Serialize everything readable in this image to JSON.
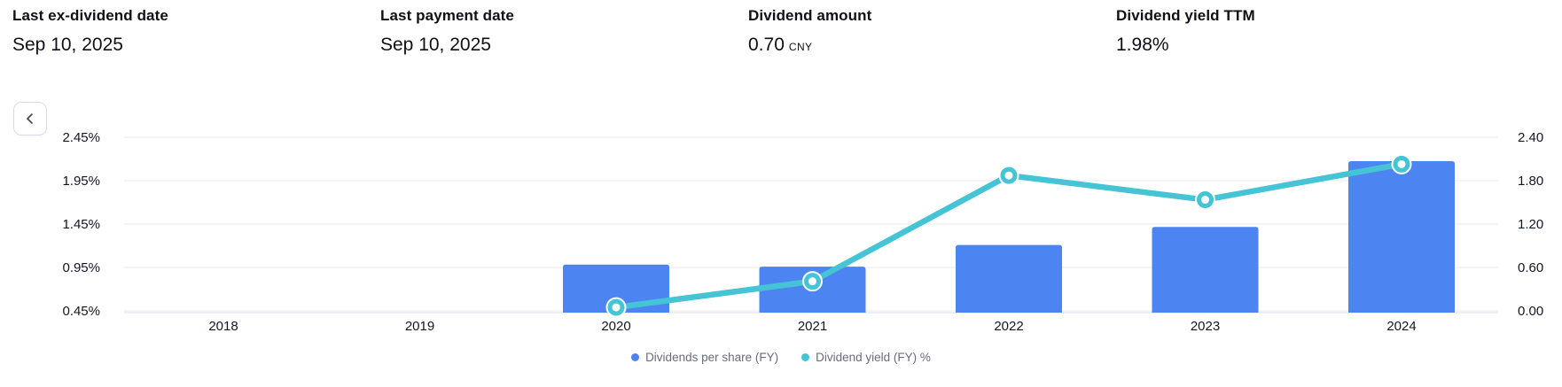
{
  "stats": [
    {
      "label": "Last ex-dividend date",
      "value": "Sep 10, 2025",
      "unit": ""
    },
    {
      "label": "Last payment date",
      "value": "Sep 10, 2025",
      "unit": ""
    },
    {
      "label": "Dividend amount",
      "value": "0.70",
      "unit": "CNY"
    },
    {
      "label": "Dividend yield TTM",
      "value": "1.98%",
      "unit": ""
    }
  ],
  "controls": {
    "scroll_left_icon": "chevron-left"
  },
  "chart_data": {
    "type": "bar",
    "subtype": "bar+line dual-axis combo",
    "categories": [
      "2018",
      "2019",
      "2020",
      "2021",
      "2022",
      "2023",
      "2024"
    ],
    "series": [
      {
        "name": "Dividends per share (FY)",
        "type": "bar",
        "axis": "right",
        "color": "#4c85f2",
        "values": [
          null,
          null,
          0.64,
          0.61,
          0.91,
          1.16,
          2.07
        ]
      },
      {
        "name": "Dividend yield (FY) %",
        "type": "line",
        "axis": "left",
        "color": "#45c4d6",
        "values": [
          null,
          null,
          0.49,
          0.79,
          2.01,
          1.73,
          2.14
        ]
      }
    ],
    "left_axis": {
      "tick_labels": [
        "2.45%",
        "1.95%",
        "1.45%",
        "0.95%",
        "0.45%"
      ],
      "min": 0.45,
      "max": 2.45
    },
    "right_axis": {
      "tick_labels": [
        "2.40",
        "1.80",
        "1.20",
        "0.60",
        "0.00"
      ],
      "min": 0.0,
      "max": 2.4
    },
    "grid": true,
    "legend_position": "bottom-center",
    "colors": {
      "bar": "#4c85f2",
      "line": "#45c4d6",
      "gridline": "#eef0f4",
      "axis_line": "#e7eaf0",
      "tick_text": "#131722",
      "legend_text": "#676d7c"
    }
  }
}
